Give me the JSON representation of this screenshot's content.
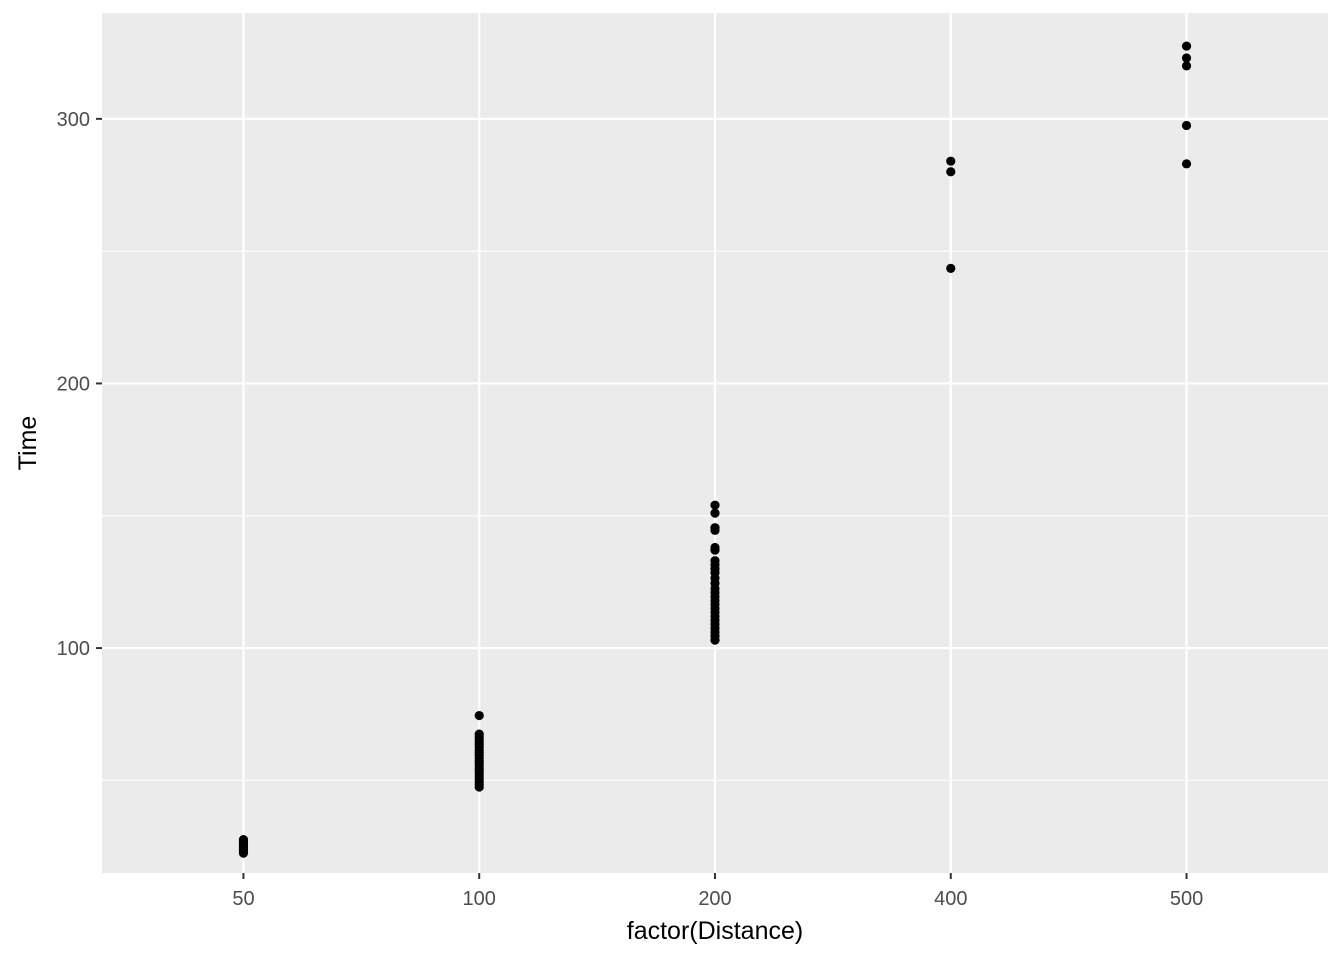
{
  "chart_data": {
    "type": "scatter",
    "title": "",
    "xlabel": "factor(Distance)",
    "ylabel": "Time",
    "categories": [
      "50",
      "100",
      "200",
      "400",
      "500"
    ],
    "ylim": [
      15,
      340
    ],
    "y_breaks": [
      100,
      200,
      300
    ],
    "grid": true,
    "legend": "none",
    "colors": {
      "panel": "#EBEBEB",
      "grid": "#FFFFFF",
      "point": "#000000",
      "tick_text": "#4D4D4D"
    },
    "points": [
      {
        "x": "50",
        "y": 22.5
      },
      {
        "x": "50",
        "y": 23.2
      },
      {
        "x": "50",
        "y": 23.8
      },
      {
        "x": "50",
        "y": 24.3
      },
      {
        "x": "50",
        "y": 24.9
      },
      {
        "x": "50",
        "y": 25.4
      },
      {
        "x": "50",
        "y": 26.0
      },
      {
        "x": "50",
        "y": 26.5
      },
      {
        "x": "50",
        "y": 27.0
      },
      {
        "x": "50",
        "y": 27.6
      },
      {
        "x": "100",
        "y": 47.5
      },
      {
        "x": "100",
        "y": 48.5
      },
      {
        "x": "100",
        "y": 49.5
      },
      {
        "x": "100",
        "y": 50.5
      },
      {
        "x": "100",
        "y": 51.5
      },
      {
        "x": "100",
        "y": 52.5
      },
      {
        "x": "100",
        "y": 53.5
      },
      {
        "x": "100",
        "y": 54.5
      },
      {
        "x": "100",
        "y": 55.5
      },
      {
        "x": "100",
        "y": 56.5
      },
      {
        "x": "100",
        "y": 57.5
      },
      {
        "x": "100",
        "y": 58.5
      },
      {
        "x": "100",
        "y": 59.5
      },
      {
        "x": "100",
        "y": 60.5
      },
      {
        "x": "100",
        "y": 61.5
      },
      {
        "x": "100",
        "y": 62.5
      },
      {
        "x": "100",
        "y": 63.5
      },
      {
        "x": "100",
        "y": 64.5
      },
      {
        "x": "100",
        "y": 65.5
      },
      {
        "x": "100",
        "y": 66.5
      },
      {
        "x": "100",
        "y": 67.5
      },
      {
        "x": "100",
        "y": 74.5
      },
      {
        "x": "200",
        "y": 103.0
      },
      {
        "x": "200",
        "y": 104.5
      },
      {
        "x": "200",
        "y": 106.0
      },
      {
        "x": "200",
        "y": 107.5
      },
      {
        "x": "200",
        "y": 109.0
      },
      {
        "x": "200",
        "y": 110.5
      },
      {
        "x": "200",
        "y": 112.0
      },
      {
        "x": "200",
        "y": 113.5
      },
      {
        "x": "200",
        "y": 115.0
      },
      {
        "x": "200",
        "y": 116.5
      },
      {
        "x": "200",
        "y": 118.0
      },
      {
        "x": "200",
        "y": 119.5
      },
      {
        "x": "200",
        "y": 121.0
      },
      {
        "x": "200",
        "y": 122.5
      },
      {
        "x": "200",
        "y": 124.5
      },
      {
        "x": "200",
        "y": 126.5
      },
      {
        "x": "200",
        "y": 128.5
      },
      {
        "x": "200",
        "y": 130.0
      },
      {
        "x": "200",
        "y": 131.5
      },
      {
        "x": "200",
        "y": 133.0
      },
      {
        "x": "200",
        "y": 137.0
      },
      {
        "x": "200",
        "y": 138.0
      },
      {
        "x": "200",
        "y": 144.5
      },
      {
        "x": "200",
        "y": 145.5
      },
      {
        "x": "200",
        "y": 151.0
      },
      {
        "x": "200",
        "y": 154.0
      },
      {
        "x": "400",
        "y": 243.5
      },
      {
        "x": "400",
        "y": 280.0
      },
      {
        "x": "400",
        "y": 284.0
      },
      {
        "x": "500",
        "y": 283.0
      },
      {
        "x": "500",
        "y": 297.5
      },
      {
        "x": "500",
        "y": 320.0
      },
      {
        "x": "500",
        "y": 323.0
      },
      {
        "x": "500",
        "y": 327.5
      }
    ]
  }
}
